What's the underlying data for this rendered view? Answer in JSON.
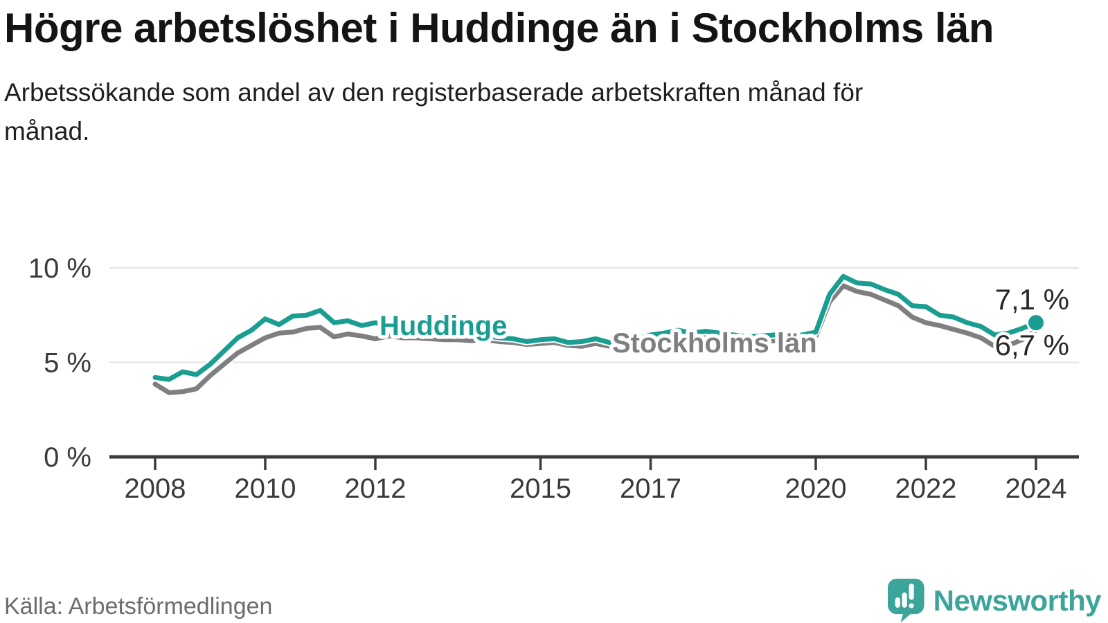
{
  "header": {
    "title": "Högre arbetslöshet i Huddinge än i Stockholms län",
    "subtitle": "Arbetssökande som andel av den registerbaserade arbetskraften månad för månad."
  },
  "footer": {
    "source": "Källa: Arbetsförmedlingen",
    "brand_name": "Newsworthy",
    "brand_icon": "newsworthy-speech-bubble-bar-chart-icon"
  },
  "colors": {
    "huddinge_teal": "#1a9e91",
    "stockholm_gray": "#7f7f82",
    "axis": "#3a3a3a",
    "gridline": "#e3e3e4",
    "end_label_text": "#27272a",
    "brand_teal": "#3ba49b",
    "source_text": "#6b6c70"
  },
  "chart_data": {
    "type": "line",
    "title": "Högre arbetslöshet i Huddinge än i Stockholms län",
    "xlabel": "",
    "ylabel": "",
    "unit": "%",
    "grid": "horizontal-only",
    "legend_position": "inline-labels-on-lines",
    "xlim": [
      2007.9,
      2024.6
    ],
    "ylim": [
      0,
      10.8
    ],
    "x_ticks": [
      {
        "value": 2008,
        "label": "2008"
      },
      {
        "value": 2010,
        "label": "2010"
      },
      {
        "value": 2012,
        "label": "2012"
      },
      {
        "value": 2015,
        "label": "2015"
      },
      {
        "value": 2017,
        "label": "2017"
      },
      {
        "value": 2020,
        "label": "2020"
      },
      {
        "value": 2022,
        "label": "2022"
      },
      {
        "value": 2024,
        "label": "2024"
      }
    ],
    "y_ticks": [
      {
        "value": 0,
        "label": "0 %"
      },
      {
        "value": 5,
        "label": "5 %"
      },
      {
        "value": 10,
        "label": "10 %"
      }
    ],
    "x": [
      2008.0,
      2008.25,
      2008.5,
      2008.75,
      2009.0,
      2009.25,
      2009.5,
      2009.75,
      2010.0,
      2010.25,
      2010.5,
      2010.75,
      2011.0,
      2011.25,
      2011.5,
      2011.75,
      2012.0,
      2012.25,
      2012.5,
      2012.75,
      2013.0,
      2013.25,
      2013.5,
      2013.75,
      2014.0,
      2014.25,
      2014.5,
      2014.75,
      2015.0,
      2015.25,
      2015.5,
      2015.75,
      2016.0,
      2016.25,
      2016.5,
      2016.75,
      2017.0,
      2017.25,
      2017.5,
      2017.75,
      2018.0,
      2018.25,
      2018.5,
      2018.75,
      2019.0,
      2019.25,
      2019.5,
      2019.75,
      2020.0,
      2020.25,
      2020.5,
      2020.75,
      2021.0,
      2021.25,
      2021.5,
      2021.75,
      2022.0,
      2022.25,
      2022.5,
      2022.75,
      2023.0,
      2023.25,
      2023.5,
      2023.75,
      2024.0
    ],
    "series": [
      {
        "name": "Stockholms län",
        "color": "#7f7f82",
        "end_value": 6.7,
        "end_label": "6,7 %",
        "end_dot": false,
        "values": [
          3.85,
          3.4,
          3.45,
          3.6,
          4.3,
          4.9,
          5.5,
          5.9,
          6.3,
          6.55,
          6.6,
          6.8,
          6.85,
          6.35,
          6.5,
          6.4,
          6.25,
          6.4,
          6.3,
          6.3,
          6.25,
          6.2,
          6.2,
          6.15,
          6.2,
          6.1,
          6.05,
          5.95,
          6.0,
          6.05,
          5.9,
          5.85,
          6.0,
          5.85,
          5.8,
          6.0,
          6.15,
          6.25,
          6.35,
          6.25,
          6.3,
          6.2,
          6.15,
          6.05,
          6.1,
          6.15,
          6.1,
          6.2,
          6.35,
          8.2,
          9.05,
          8.75,
          8.6,
          8.3,
          8.0,
          7.4,
          7.1,
          6.95,
          6.75,
          6.55,
          6.3,
          5.85,
          5.9,
          6.2,
          6.7
        ]
      },
      {
        "name": "Huddinge",
        "color": "#1a9e91",
        "end_value": 7.1,
        "end_label": "7,1 %",
        "end_dot": true,
        "values": [
          4.2,
          4.1,
          4.5,
          4.35,
          4.9,
          5.6,
          6.3,
          6.7,
          7.3,
          7.0,
          7.45,
          7.5,
          7.75,
          7.1,
          7.2,
          6.95,
          7.1,
          6.9,
          6.95,
          6.8,
          6.7,
          6.6,
          6.55,
          6.45,
          6.4,
          6.3,
          6.25,
          6.1,
          6.2,
          6.25,
          6.05,
          6.1,
          6.25,
          6.05,
          6.0,
          6.25,
          6.45,
          6.55,
          6.7,
          6.55,
          6.65,
          6.55,
          6.45,
          6.35,
          6.4,
          6.45,
          6.4,
          6.45,
          6.6,
          8.6,
          9.55,
          9.2,
          9.15,
          8.85,
          8.6,
          8.0,
          7.95,
          7.5,
          7.4,
          7.1,
          6.9,
          6.45,
          6.55,
          6.8,
          7.1
        ]
      }
    ]
  }
}
